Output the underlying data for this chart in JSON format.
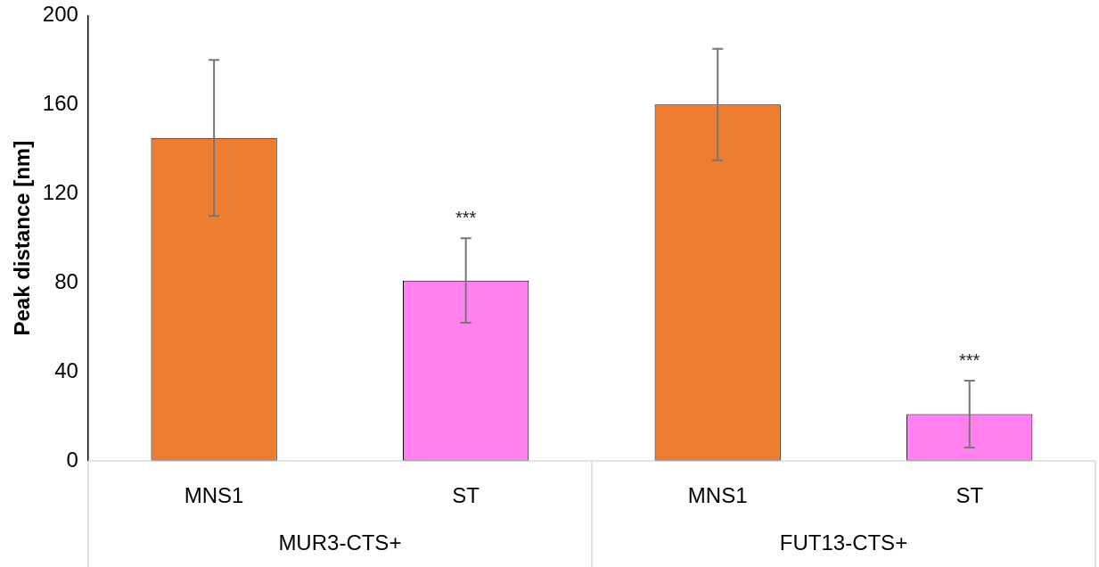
{
  "chart_data": {
    "type": "bar",
    "ylabel": "Peak distance [nm]",
    "categories": [
      "MNS1",
      "ST",
      "MNS1",
      "ST"
    ],
    "values": [
      145,
      81,
      160,
      21
    ],
    "colors": [
      "#ed7d31",
      "#ff80ee",
      "#ed7d31",
      "#ff80ee"
    ],
    "errors": [
      35,
      19,
      25,
      15
    ],
    "ylim": [
      0,
      200
    ],
    "yticks": [
      0,
      40,
      80,
      120,
      160,
      200
    ],
    "grid": false,
    "legend": false,
    "value_labels": [
      null,
      "***",
      null,
      "***"
    ],
    "annotations": [
      "MUR3-CTS+",
      "FUT13-CTS+"
    ]
  }
}
